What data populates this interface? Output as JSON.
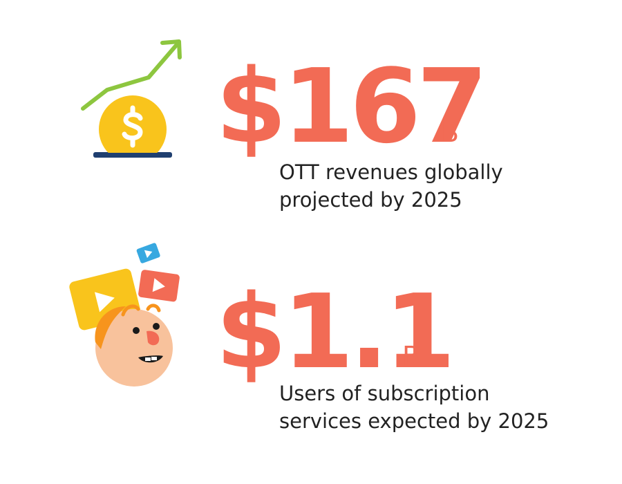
{
  "colors": {
    "accent": "#F26B55",
    "text": "#222222",
    "coin": "#F9C41C",
    "coin_mark": "#FFFFFF",
    "arrow": "#8DC63F",
    "slot": "#1F3F70",
    "card_yellow": "#F9C41C",
    "card_red": "#F26B55",
    "card_blue": "#37A8E0",
    "face": "#F8C29C",
    "hair": "#F7941D"
  },
  "stats": [
    {
      "icon": "coin-growth-icon",
      "value": "$167",
      "unit": "B",
      "caption_lines": [
        "OTT revenues globally",
        "projected by 2025"
      ]
    },
    {
      "icon": "video-viewer-icon",
      "value": "$1.1",
      "unit": "B",
      "caption_lines": [
        "Users of subscription",
        "services expected by 2025"
      ]
    }
  ]
}
